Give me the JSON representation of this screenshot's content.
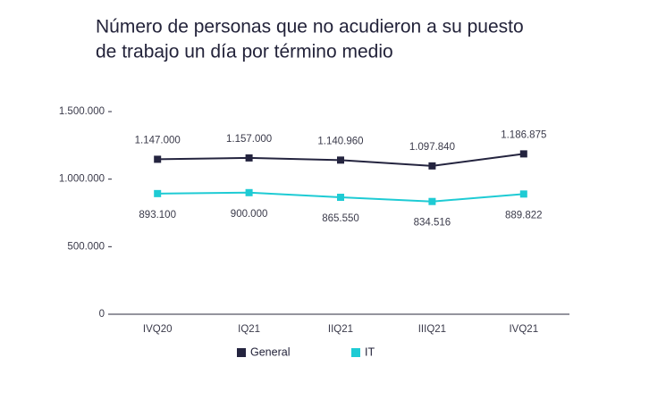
{
  "chart_data": {
    "type": "line",
    "title": [
      "Número de personas que no acudieron a su puesto",
      "de trabajo un día por término medio"
    ],
    "categories": [
      "IVQ20",
      "IQ21",
      "IIQ21",
      "IIIQ21",
      "IVQ21"
    ],
    "series": [
      {
        "name": "General",
        "color": "#24243f",
        "values": [
          1147000,
          1157000,
          1140960,
          1097840,
          1186875
        ],
        "value_labels": [
          "1.147.000",
          "1.157.000",
          "1.140.960",
          "1.097.840",
          "1.186.875"
        ]
      },
      {
        "name": "IT",
        "color": "#1ecbd4",
        "values": [
          893100,
          900000,
          865550,
          834516,
          889822
        ],
        "value_labels": [
          "893.100",
          "900.000",
          "865.550",
          "834.516",
          "889.822"
        ]
      }
    ],
    "ylim": [
      0,
      1500000
    ],
    "yticks": [
      {
        "value": 0,
        "label": "0"
      },
      {
        "value": 500000,
        "label": "500.000"
      },
      {
        "value": 1000000,
        "label": "1.000.000"
      },
      {
        "value": 1500000,
        "label": "1.500.000"
      }
    ],
    "grid": false
  }
}
